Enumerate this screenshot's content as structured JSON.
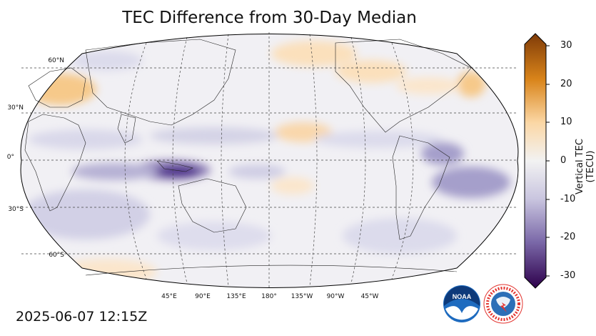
{
  "title": "TEC Difference from 30-Day Median",
  "timestamp": "2025-06-07 12:15Z",
  "lat_labels": [
    "60°N",
    "30°N",
    "0°",
    "30°S",
    "60°S"
  ],
  "lon_labels": [
    "45°E",
    "90°E",
    "135°E",
    "180°",
    "135°W",
    "90°W",
    "45°W"
  ],
  "colorbar": {
    "label": "Vertical TEC (TECU)",
    "ticks": [
      "30",
      "20",
      "10",
      "0",
      "-10",
      "-20",
      "-30"
    ],
    "min": -30,
    "max": 30,
    "colors": {
      "negative": "#3b0f70",
      "neutral": "#f2f2f2",
      "positive": "#7f3b08"
    }
  },
  "logos": {
    "noaa": "NOAA",
    "nws": "NATIONAL WEATHER SERVICE"
  }
}
